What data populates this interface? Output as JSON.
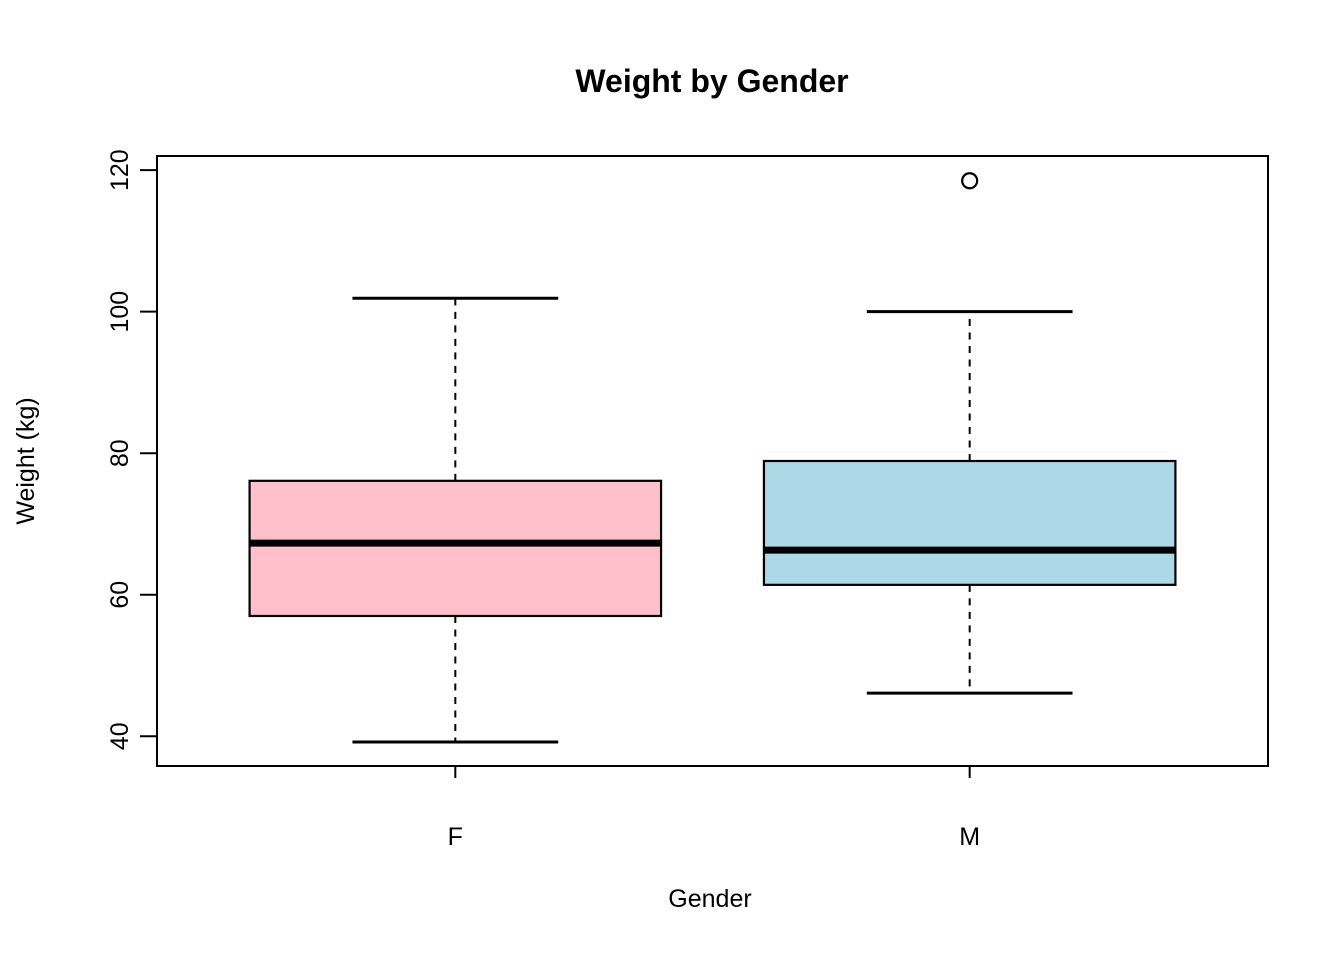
{
  "chart_data": {
    "type": "boxplot",
    "title": "Weight by Gender",
    "xlabel": "Gender",
    "ylabel": "Weight (kg)",
    "categories": [
      "F",
      "M"
    ],
    "y_ticks": [
      40,
      60,
      80,
      100,
      120
    ],
    "ylim": [
      35.8,
      122.0
    ],
    "grid": false,
    "legend": "none",
    "background_color": "#FFFFFF",
    "line_color": "#000000",
    "series": [
      {
        "name": "F",
        "box_color": "#FFC0CB",
        "whisker_low": 39.2,
        "q1": 57.0,
        "median": 67.3,
        "q3": 76.1,
        "whisker_high": 101.9,
        "outliers": []
      },
      {
        "name": "M",
        "box_color": "#ADD8E6",
        "whisker_low": 46.1,
        "q1": 61.4,
        "median": 66.3,
        "q3": 78.9,
        "whisker_high": 100.0,
        "outliers": [
          118.5
        ]
      }
    ]
  }
}
